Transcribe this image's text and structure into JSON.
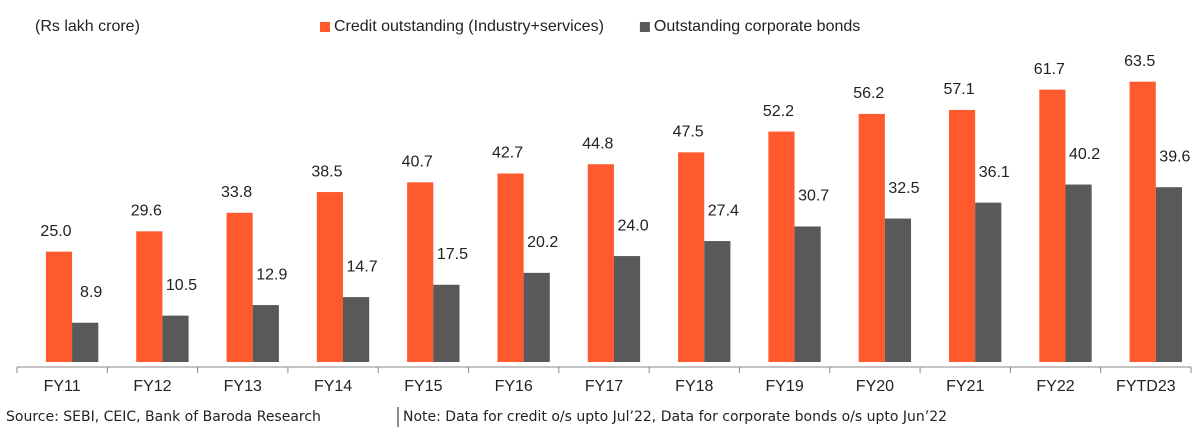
{
  "chart_data": {
    "type": "bar",
    "unit_label": "(Rs lakh crore)",
    "categories": [
      "FY11",
      "FY12",
      "FY13",
      "FY14",
      "FY15",
      "FY16",
      "FY17",
      "FY18",
      "FY19",
      "FY20",
      "FY21",
      "FY22",
      "FYTD23"
    ],
    "series": [
      {
        "name": "Credit outstanding (Industry+services)",
        "color": "#ff5a2d",
        "values": [
          25.0,
          29.6,
          33.8,
          38.5,
          40.7,
          42.7,
          44.8,
          47.5,
          52.2,
          56.2,
          57.1,
          61.7,
          63.5
        ],
        "value_labels": [
          "25.0",
          "29.6",
          "33.8",
          "38.5",
          "40.7",
          "42.7",
          "44.8",
          "47.5",
          "52.2",
          "56.2",
          "57.1",
          "61.7",
          "63.5"
        ]
      },
      {
        "name": "Outstanding corporate bonds",
        "color": "#595959",
        "values": [
          8.9,
          10.5,
          12.9,
          14.7,
          17.5,
          20.2,
          24.0,
          27.4,
          30.7,
          32.5,
          36.1,
          40.2,
          39.6
        ],
        "value_labels": [
          "8.9",
          "10.5",
          "12.9",
          "14.7",
          "17.5",
          "20.2",
          "24.0",
          "27.4",
          "30.7",
          "32.5",
          "36.1",
          "40.2",
          "39.6"
        ]
      }
    ],
    "ylim": [
      0,
      70
    ],
    "source": "Source: SEBI, CEIC, Bank of Baroda Research",
    "note": "Note: Data for credit o/s upto Jul’22, Data for corporate bonds o/s upto Jun’22"
  }
}
